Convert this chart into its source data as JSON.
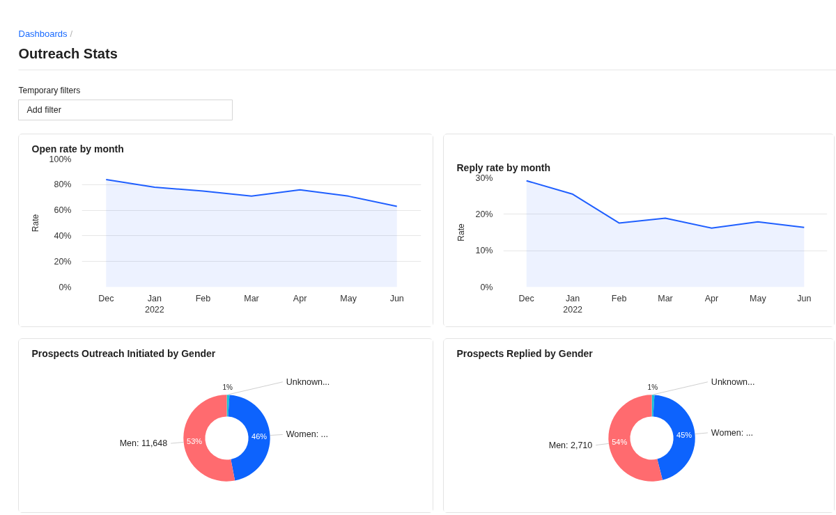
{
  "chart_data": [
    {
      "type": "other",
      "title": "Outreach Stats",
      "annotations": [
        "Dashboards",
        "/",
        "Temporary filters",
        "Add filter"
      ]
    },
    {
      "type": "area",
      "title": "Open rate by month",
      "ylabel": "Rate",
      "categories": [
        "Dec",
        "Jan\n2022",
        "Feb",
        "Mar",
        "Apr",
        "May",
        "Jun"
      ],
      "values": [
        84,
        78,
        75,
        71,
        76,
        71,
        63
      ],
      "color": "#1f5fff",
      "ylim": [
        0,
        100
      ],
      "yticks": [
        {
          "value": 0,
          "label": "0%"
        },
        {
          "value": 20,
          "label": "20%"
        },
        {
          "value": 40,
          "label": "40%"
        },
        {
          "value": 60,
          "label": "60%"
        },
        {
          "value": 80,
          "label": "80%"
        },
        {
          "value": 100,
          "label": "100%"
        }
      ],
      "grid": "y"
    },
    {
      "type": "area",
      "title": "Reply rate by month",
      "ylabel": "Rate",
      "categories": [
        "Dec",
        "Jan\n2022",
        "Feb",
        "Mar",
        "Apr",
        "May",
        "Jun"
      ],
      "values": [
        29.2,
        25.5,
        17.6,
        18.9,
        16.2,
        17.9,
        16.4
      ],
      "color": "#1f5fff",
      "ylim": [
        0,
        30
      ],
      "yticks": [
        {
          "value": 0,
          "label": "0%"
        },
        {
          "value": 10,
          "label": "10%"
        },
        {
          "value": 20,
          "label": "20%"
        },
        {
          "value": 30,
          "label": "30%"
        }
      ],
      "grid": "y"
    },
    {
      "type": "donut",
      "title": "Prospects Outreach Initiated by Gender",
      "categories": [
        "Unknown...",
        "Women: ...",
        "Men: 11,648"
      ],
      "values": [
        1,
        46,
        53
      ],
      "colors": [
        "#17c3d3",
        "#0d63fd",
        "#ff6b6f"
      ],
      "value_labels": [
        "1%",
        "46%",
        "53%"
      ]
    },
    {
      "type": "donut",
      "title": "Prospects Replied by Gender",
      "categories": [
        "Unknown...",
        "Women: ...",
        "Men: 2,710"
      ],
      "values": [
        1,
        45,
        54
      ],
      "colors": [
        "#17c3d3",
        "#0d63fd",
        "#ff6b6f"
      ],
      "value_labels": [
        "1%",
        "45%",
        "54%"
      ]
    }
  ]
}
